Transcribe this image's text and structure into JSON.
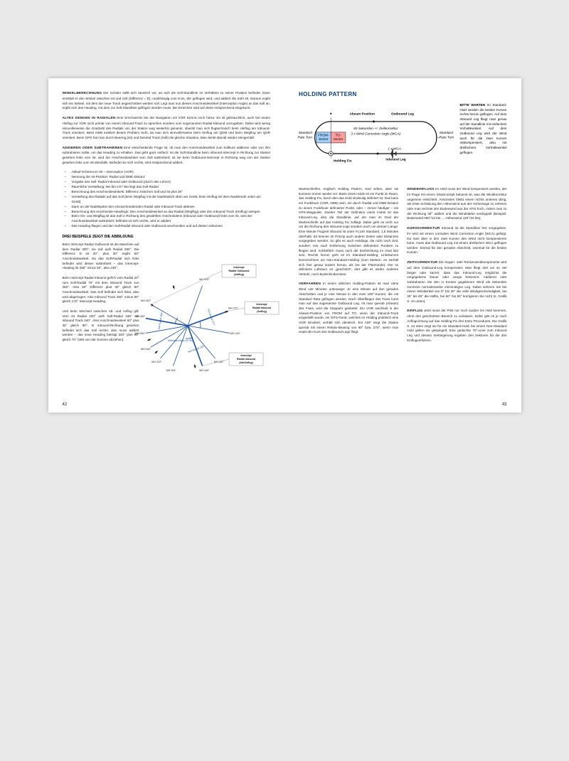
{
  "left": {
    "pagenum": "42",
    "p1": {
      "lead": "WINKELBERECHNUNG",
      "body": " Der Schüler stellt sich räumlich vor, wo sich die Soll-Standlinie im Verhältnis zu seiner Position befindet. Dann ermittelt er den Winkel zwischen Ist und Soll (Differenz = D), unabhängig vom Kurs, der geflogen wird, und addiert die Zahl 30. Daraus ergibt sich ein Winkel, mit dem der neue Track angeschnitten werden soll. Legt man nun diesen Anschneidewinkel (Interception Angle) an das Soll an, ergibt sich das Heading, mit dem zur Soll-Standlinie geflogen werden muss. Bei Erreichen wird auf diese entsprechend eingekurvt."
    },
    "p2": {
      "lead": "ALTES DENKEN IN RADIALEN",
      "body": " Eine Erschwernis bei der Navigation mit VOR kommt noch hinzu: Es ist gebräuchlich, auch bei einem Hinflug zur VOR nicht primär von einem Inbound-Track zu sprechen sondern vom sogenannten Radial-Inbound vorzugeben. Dabei wird wenig sinnvollerweise die Gradzahl des Radials von der Station weg weiterhin genannt, obwohl man sich flugtechnisch beim Hinflug am Inbound-Track orientiert. Beim NDB existiert dieses Problem nicht, da man sich sinnvollerweise beim Hinflug am QDM und beim Wegflug am QDR orientiert. Beim GPS hat man durch Bearing (Ist) und Desired Track (Soll) die gleiche Situation. Man denkt überall wieder sinngemäß."
    },
    "p3": {
      "lead": "ADDIEREN ODER SUBTRAHIEREN",
      "body": " Eine entscheidende Frage ist, ob man den Anschneidewinkel zum Sollkurs addieren oder von ihm subtrahieren sollte, um das Heading zu erhalten. Das geht ganz einfach: Ist die Soll-Standlinie beim Inbound-Intercept in Richtung zur Station gesehen links vom Ist, wird der Anschneidewinkel vom Soll subtrahiert; ist sie beim Outbound-Intercept in Richtung weg von der Station gesehen links vom Ist ebenfalls. Befindet sie sich rechts, wird entsprechend addiert."
    },
    "list": [
      "Ablauf-Schema D+30 – Interception (VOR)",
      "Nennung der Ist-Position: Radial und DME-Distanz",
      "Vorgabe des Soll: Radial Inbound oder Outbound (durch den Lehrer)",
      "Räumliche Vorstellung: Wo bin ich? Wo liegt das Soll-Radial",
      "Berechnung des Anschneidewinkels: Differenz zwischen Soll und Ist plus 30°",
      "Vorstellung des Radials auf das Soll (beim Wegflug mit der Nadelspitze oben am Gerät, beim Hinflug mit dem Nadelende unten am Gerät)",
      "Dann an der Nadelspitze den einzuschneidenden Radial oder Inbound-Track ablesen",
      "Berechnung des Anschneide-Headings: Den Anschneidewinkel an das Radial (Wegflug) oder den Inbound-Track (Hinflug) anlegen",
      "Beim Hin- und Wegflug ist das Soll in Richtung des gewählten Anschneidens (Inbound oder Outbound) links vom Ist, wird der Anschneidewinkel subtrahiert; befindet es sich rechts, wird er addiert.",
      "Das Heading fliegen und den Soll-Radial Inbound oder Outbound anschneiden und auf diesen einkurven"
    ],
    "subhead": "DREI BEISPIELE ZEIGT DIE ABBILDUNG",
    "p4": "Beim Intercept Radial Outbound ist die Maschine auf dem Radial 300°; sie soll aufs Radial 280°. Die Differenz D ist 20°, plus 30° ergibt 50° Anschneidewinkel. Da das Soll-Radial sich links befindet wird dieser subtrahiert – das Intercept-Heading ist 280° minus 50°, also 230°.",
    "p5": "Beim Intercept Radial Inbound geht's vom Radial 20° zum Soll-Radial 70° mit dem Inbound Track von 250°. Also 50° Differenz plus 30° gleich 80° Anschneidewinkel. Das Soll befindet sich links, also wird abgezogen: Also Inbound Track 250° minus 80° gleich 170° Intercept-Heading.",
    "p6": "Und beim Wechsel zwischen Ab- und Anflug gilt: Vom Ist Radial 220° aufs Soll-Radial 160° mit Inbound Track 340°. Also Anschneidewinkel 60° plus 30° gleich 90°. In Inbound-Richtung gesehen befindet sich das Soll rechts, also muss addiert werden – das neue Heading beträgt 340° plus 90° gleich 70° (360 von der Summe abziehen).",
    "fig": {
      "radials": [
        300,
        280,
        260,
        240,
        220,
        200,
        160,
        140,
        100,
        70,
        20
      ],
      "soll_radials": [
        280,
        70,
        160
      ],
      "labels": {
        "sollA": "Soll-Radial 070°",
        "sollB": "Soll-Radial 280°",
        "sollC": "Soll-Radial 160°",
        "ia": "Intercept Angle (D+30)"
      },
      "boxes": [
        {
          "t1": "Intercept",
          "t2": "Radial Outbound",
          "t3": "(Abflug)"
        },
        {
          "t1": "Intercept",
          "t2": "Radial Inbound",
          "t3": "(Anflug)"
        },
        {
          "t1": "Intercept",
          "t2": "Radial Inbound",
          "t3": "(Ab/Anflug)"
        }
      ],
      "colors": {
        "line": "#1c4fa3",
        "plane": "#2a2a2a"
      }
    }
  },
  "right": {
    "pagenum": "43",
    "title": "HOLDING PATTERN",
    "fig": {
      "abeam": "Abeam Position",
      "outleg": "Outbound Leg",
      "timing": "60 Sekunden +/- Zeitkorrektur",
      "wca": "3 x Wind Correction Angle (WCA)",
      "srt": "Standard Rate Turn",
      "from": "FROM-Sector",
      "to": "TO-Sector",
      "one_wca": "1 x WCA",
      "inleg": "Inbound Leg",
      "fix": "Holding Fix",
      "colors": {
        "from": "#9fd0ff",
        "to": "#ff9e9e",
        "track": "#0a0a0a"
      }
    },
    "side": {
      "lead": "BITTE WARTEN",
      "body": " Im Standard-Hold werden die beiden Kurven rechts herum geflogen. Auf dem Inbound Leg fliegt man genau auf der Standlinie mit einfachem Vorhaltewinkel. Auf dem Outbound Leg wird der Wind auch für die zwei Kurven mitkompensiert, also mit dreifachem Vorhaltewinkel geflogen."
    },
    "col1": {
      "p1": "Warteschleifen, englisch Holding Pattern, sind selten, aber sie kommen immer wieder vor. Basis eines Holds ist ein Punkt im Raum, das Holding Fix, durch den das Hold eindeutig definiert ist. Das kann ein Funkfeuer (VOR, NDB) sein, ein durch Radial und DME-Distanz zu einem Funkfeuer definierter Punkt, oder – immer häufiger – ein GPS-Wegpunkt. Zweiter Teil der Definition eines Holds ist das Inbound-Leg, also die Standlinie, auf der man im Oval der Warteschleife auf das Holding Fix zufliegt. Dabei geht es nicht nur um die Richtung des Inbound-Legs sondern auch um dessen Länge: Eine Minute Flugzeit inbound ist unter FL140 Standard, 1,5 Minuten oberhalb. Es können im Prinzip auch andere Zeiten oder Distanzen vorgegeben werden. So gibt es auch Holdings, die nicht nach Zeit, sondern rein nach Entfernung zwischen definierten Punkten zu fliegen sind. Schließlich muss noch die Drehrichtung im Oval klar sein: Rechts herum geht es im Standard-Holding; Linkskurven kennzeichnen ein Non-Standard-Holding (zum Merken: es verhält sich hier genau anders herum, als bei der Platzrunde). Der so definierte Luftraum ist „geschützt“, dort gibt es weder anderen Verkehr, noch Bodenhindernisse.",
      "p2_lead": "VERFAHREN",
      "p2": " In einem üblichen Holding-Pattern ist man ohne Wind vier Minuten unterwegs: Je eine Minute auf den geraden Abschnitten und je eine Minute in den zwei 180°-Kurven, die mit Standard Rate geflogen werden. Nach Überfliegen des Fixes kurvt man auf das sogenannte Outbound Leg. Ist man querab (Abeam) des Fixes, wird die Stoppuhr gestartet. Ein VOR wechselt in der Abeam-Position von FROM auf TO, wenn der Inbound-Track eingestellt wurde; ein GPS-Gerät, welches im Holding praktisch eine VOR simuliert, verhält sich identisch. Ein ADF zeigt die Station querab mit einem Relativ-Bearing von 90° bzw. 270°, wenn man exakt den Kurs des Outbound-Legs fliegt."
    },
    "col2": {
      "p1_lead": "WINDEINFLUSS",
      "p1": " Im Hold muss der Wind kompensiert werden, der im Fluge mit einem Glasscockpit bekannt ist, was die Windkorrektur ungemein erleichtert. Ansonsten bleibt einem nichts anderes übrig, als erste Schätzung den Höhenwind aus der Vorhersage zu nehmen oder man rechnet den Bodenwind aus der ATIS hoch, indem man zu der Richtung 30° addiert und die Windstärke verdoppelt (Beispiel: Bodenwind 090°/12 kts → Höhenwind 120°/24 kts).",
      "p2_lead": "KURSKORREKTUR",
      "p2": " Inbound ist die Standlinie fest vorgegeben, ihr wird mit einem normalen Wind Correction Angle (WCA) gefolgt. Da man aber in den zwei Kurven den Wind nicht kompensieren kann, muss das Outbound Leg mit einem dreifachen WCA geflogen werden: Einmal für den geraden Abschnitt, zweimal für die beiden Kurven.",
      "p3_lead": "ZEITKORREKTUR",
      "p3": " Die Gegen- oder Rückenwindkomponente wird auf dem Outbound-Leg kompensiert. Man fliegt dort um so viel länger oder kürzer, dass das Inbound-Leg möglichst die vorgegebene Dauer oder Länge bekommt. Addieren oder subtrahieren Sie den in Knoten gegebenen Wind als Sekunden zum/vom normalerweise einminütigen Leg. Dabei nehmen Sie bei einem Windwinkel von 0° bis 30° die volle Windgeschwindigkeit, bei 30° bis 60° die Hälfte, bei 60° bis 90° korrigieren Sie nicht (s. Grafik S. 44 unten).",
      "p4_lead": "EINFLUG",
      "p4": " Jetzt muss der Pilot nur noch sauber ins Hold kommen, ohne den geschützten Bereich zu verlassen. Dafür gibt es je nach Anflugrichtung auf das Holding-Fix drei Entry Procedures. Die Grafik S. 44 oben zeigt sie für ein Standard-Hold; bei einem Non-Standard Hold gelten sie gespiegelt. Eine gedachte 70°-Linie zum Inbound Leg und dessen Verlängerung ergeben drei Sektoren für die drei Einflugverfahren."
    }
  }
}
